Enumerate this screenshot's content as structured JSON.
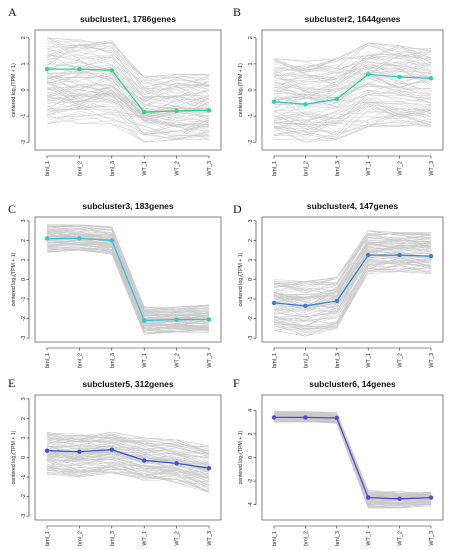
{
  "figure": {
    "background_line_color": "#c9c9c9",
    "ylabel": "centered log₂(TPM + 1)"
  },
  "chart_data": [
    {
      "type": "line",
      "panel": "A",
      "title": "subcluster1, 1786genes",
      "categories": [
        "bml_1",
        "bml_2",
        "bml_3",
        "WT_1",
        "WT_2",
        "WT_3"
      ],
      "ylabel": "centered log₂(TPM + 1)",
      "ylim": [
        -2.3,
        2.3
      ],
      "yticks": [
        -2,
        -1,
        0,
        1,
        2
      ],
      "mean_color": "#33d17a",
      "mean": [
        0.8,
        0.8,
        0.75,
        -0.85,
        -0.8,
        -0.78
      ],
      "band": [
        [
          -1.3,
          2.0
        ],
        [
          -1.3,
          2.0
        ],
        [
          -1.3,
          1.9
        ],
        [
          -2.0,
          0.5
        ],
        [
          -1.9,
          0.6
        ],
        [
          -1.9,
          0.6
        ]
      ]
    },
    {
      "type": "line",
      "panel": "B",
      "title": "subcluster2, 1644genes",
      "categories": [
        "bml_1",
        "bml_2",
        "bml_3",
        "WT_1",
        "WT_2",
        "WT_3"
      ],
      "ylabel": "centered log₂(TPM + 1)",
      "ylim": [
        -2.3,
        2.3
      ],
      "yticks": [
        -2,
        -1,
        0,
        1,
        2
      ],
      "mean_color": "#2ad1b0",
      "mean": [
        -0.45,
        -0.55,
        -0.35,
        0.6,
        0.5,
        0.45
      ],
      "band": [
        [
          -1.9,
          1.2
        ],
        [
          -2.0,
          1.1
        ],
        [
          -1.9,
          1.2
        ],
        [
          -1.4,
          1.8
        ],
        [
          -1.4,
          1.7
        ],
        [
          -1.4,
          1.6
        ]
      ]
    },
    {
      "type": "line",
      "panel": "C",
      "title": "subcluster3, 183genes",
      "categories": [
        "bml_1",
        "bml_2",
        "bml_3",
        "WT_1",
        "WT_2",
        "WT_3"
      ],
      "ylabel": "centered log₂(TPM + 1)",
      "ylim": [
        -3.2,
        3.2
      ],
      "yticks": [
        -3,
        -2,
        -1,
        0,
        1,
        2,
        3
      ],
      "mean_color": "#35c3dc",
      "mean": [
        2.1,
        2.1,
        2.0,
        -2.1,
        -2.05,
        -2.05
      ],
      "band": [
        [
          1.4,
          2.8
        ],
        [
          1.5,
          2.8
        ],
        [
          1.3,
          2.7
        ],
        [
          -2.8,
          -1.4
        ],
        [
          -2.7,
          -1.4
        ],
        [
          -2.7,
          -1.3
        ]
      ]
    },
    {
      "type": "line",
      "panel": "D",
      "title": "subcluster4, 147genes",
      "categories": [
        "bml_1",
        "bml_2",
        "bml_3",
        "WT_1",
        "WT_2",
        "WT_3"
      ],
      "ylabel": "centered log₂(TPM + 1)",
      "ylim": [
        -3.2,
        3.2
      ],
      "yticks": [
        -3,
        -2,
        -1,
        0,
        1,
        2,
        3
      ],
      "mean_color": "#3b7fd6",
      "mean": [
        -1.2,
        -1.35,
        -1.1,
        1.25,
        1.25,
        1.2
      ],
      "band": [
        [
          -2.6,
          0.0
        ],
        [
          -2.9,
          -0.1
        ],
        [
          -2.5,
          0.1
        ],
        [
          0.3,
          2.5
        ],
        [
          0.4,
          2.4
        ],
        [
          0.3,
          2.4
        ]
      ]
    },
    {
      "type": "line",
      "panel": "E",
      "title": "subcluster5, 312genes",
      "categories": [
        "bml_1",
        "bml_2",
        "bml_3",
        "WT_1",
        "WT_2",
        "WT_3"
      ],
      "ylabel": "centered log₂(TPM + 1)",
      "ylim": [
        -3.2,
        3.2
      ],
      "yticks": [
        -3,
        -2,
        -1,
        0,
        1,
        2,
        3
      ],
      "mean_color": "#3a55d4",
      "mean": [
        0.35,
        0.3,
        0.4,
        -0.15,
        -0.3,
        -0.55
      ],
      "band": [
        [
          -0.9,
          1.3
        ],
        [
          -1.0,
          1.2
        ],
        [
          -0.8,
          1.3
        ],
        [
          -1.2,
          1.0
        ],
        [
          -1.3,
          0.9
        ],
        [
          -1.8,
          0.6
        ]
      ]
    },
    {
      "type": "line",
      "panel": "F",
      "title": "subcluster6, 14genes",
      "categories": [
        "bml_1",
        "bml_2",
        "bml_3",
        "WT_1",
        "WT_2",
        "WT_3"
      ],
      "ylabel": "centered log₂(TPM + 1)",
      "ylim": [
        -5.3,
        5.3
      ],
      "yticks": [
        -4,
        -2,
        0,
        2,
        4
      ],
      "mean_color": "#5a46d8",
      "mean": [
        3.4,
        3.4,
        3.35,
        -3.4,
        -3.5,
        -3.4
      ],
      "band": [
        [
          3.0,
          3.9
        ],
        [
          3.0,
          3.9
        ],
        [
          2.9,
          3.8
        ],
        [
          -4.3,
          -2.8
        ],
        [
          -4.3,
          -2.9
        ],
        [
          -4.1,
          -2.9
        ]
      ]
    }
  ]
}
